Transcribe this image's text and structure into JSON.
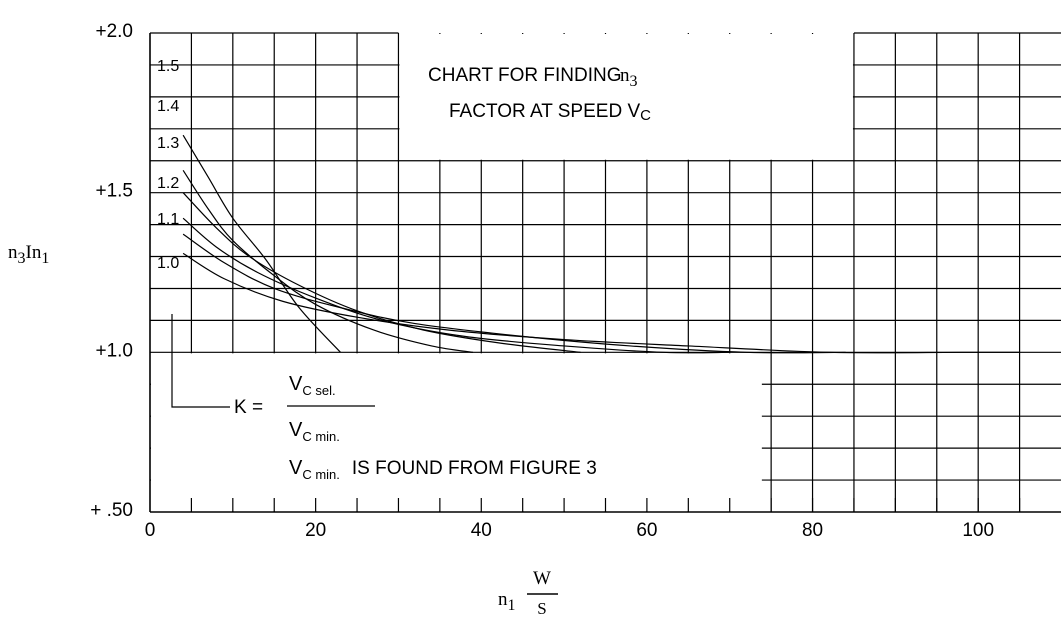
{
  "chart_data": {
    "type": "line",
    "title": "CHART FOR FINDING n3",
    "subtitle": "FACTOR AT SPEED Vc",
    "title_parts": {
      "line1_text": "CHART FOR FINDING",
      "line1_symbol": "n",
      "line1_sub": "3",
      "line2_text": "FACTOR AT SPEED V",
      "line2_sub": "C"
    },
    "ylabel": "n3In1",
    "ylabel_parts": {
      "n": "n",
      "sub1": "3",
      "mid": "In",
      "sub2": "1"
    },
    "xlabel": "n1 W/S",
    "xlabel_parts": {
      "n": "n",
      "sub": "1",
      "num": "W",
      "den": "S"
    },
    "x_ticks": [
      0,
      20,
      40,
      60,
      80,
      100
    ],
    "y_ticks": [
      {
        "value": 0.5,
        "label": "+ .50"
      },
      {
        "value": 1.0,
        "label": "+1.0"
      },
      {
        "value": 1.5,
        "label": "+1.5"
      },
      {
        "value": 2.0,
        "label": "+2.0"
      }
    ],
    "xlim": [
      0,
      110
    ],
    "ylim": [
      0.5,
      2.0
    ],
    "grid": true,
    "series": [
      {
        "name": "1.0",
        "x": [
          4,
          7,
          10,
          14,
          18,
          23
        ],
        "y": [
          1.68,
          1.55,
          1.42,
          1.29,
          1.14,
          1.0
        ]
      },
      {
        "name": "1.1",
        "x": [
          4,
          7,
          10,
          15,
          20,
          27,
          34,
          39
        ],
        "y": [
          1.57,
          1.45,
          1.35,
          1.24,
          1.15,
          1.07,
          1.02,
          1.0
        ]
      },
      {
        "name": "1.2",
        "x": [
          4,
          8,
          12,
          18,
          25,
          33,
          42,
          52
        ],
        "y": [
          1.5,
          1.39,
          1.3,
          1.21,
          1.13,
          1.07,
          1.03,
          1.0
        ]
      },
      {
        "name": "1.3",
        "x": [
          4,
          8,
          13,
          20,
          28,
          38,
          50,
          62,
          70
        ],
        "y": [
          1.42,
          1.33,
          1.25,
          1.17,
          1.1,
          1.05,
          1.02,
          1.0,
          1.0
        ]
      },
      {
        "name": "1.4",
        "x": [
          4,
          9,
          15,
          23,
          32,
          45,
          58,
          72,
          84
        ],
        "y": [
          1.37,
          1.28,
          1.2,
          1.14,
          1.09,
          1.05,
          1.02,
          1.0,
          1.0
        ]
      },
      {
        "name": "1.5",
        "x": [
          4,
          9,
          16,
          25,
          36,
          50,
          65,
          82,
          98,
          105
        ],
        "y": [
          1.31,
          1.23,
          1.16,
          1.11,
          1.07,
          1.04,
          1.02,
          1.0,
          1.0,
          1.0
        ]
      }
    ],
    "annotation": {
      "k_label": "K =",
      "num_v": "V",
      "num_sub": "C sel.",
      "den_v": "V",
      "den_sub": "C min.",
      "found_v": "V",
      "found_sub": "C min.",
      "found_text": "IS FOUND FROM FIGURE 3"
    }
  }
}
